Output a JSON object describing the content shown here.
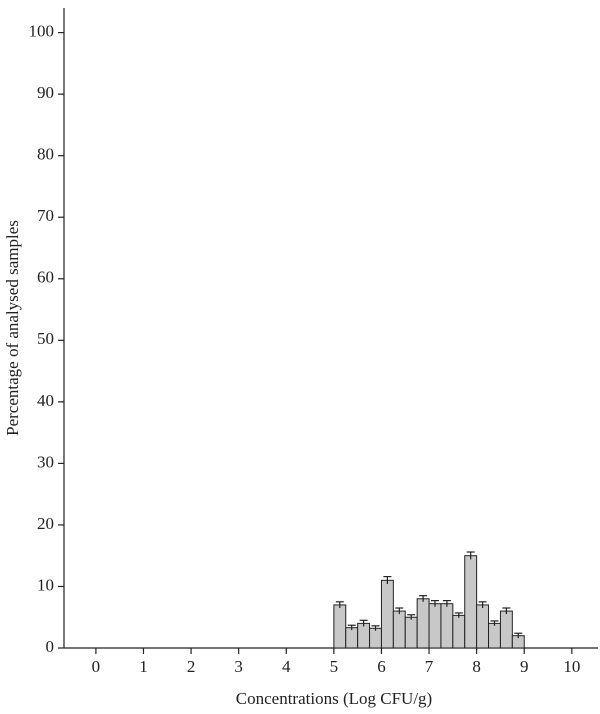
{
  "chart_data": {
    "type": "histogram",
    "x_label": "Concentrations (Log CFU/g)",
    "y_label": "Percentage of analysed samples",
    "bins": [
      5,
      5.25,
      5.5,
      5.75,
      6,
      6.25,
      6.5,
      6.75,
      7,
      7.25,
      7.5,
      7.75,
      8,
      8.25,
      8.5,
      8.75,
      9
    ],
    "values": [
      7,
      3.3,
      4,
      3.2,
      11,
      6,
      5,
      8,
      7.2,
      7.2,
      5.3,
      15,
      7,
      4,
      6,
      2
    ],
    "errors": [
      0.5,
      0.4,
      0.5,
      0.4,
      0.6,
      0.5,
      0.4,
      0.5,
      0.5,
      0.5,
      0.4,
      0.6,
      0.5,
      0.4,
      0.5,
      0.4
    ],
    "color": "#c8c8c8",
    "xlim": [
      -0.67,
      10.55
    ],
    "ylim": [
      0,
      104
    ],
    "xticks": [
      0,
      1,
      2,
      3,
      4,
      5,
      6,
      7,
      8,
      9,
      10
    ],
    "yticks": [
      0,
      10,
      20,
      30,
      40,
      50,
      60,
      70,
      80,
      90,
      100
    ]
  }
}
